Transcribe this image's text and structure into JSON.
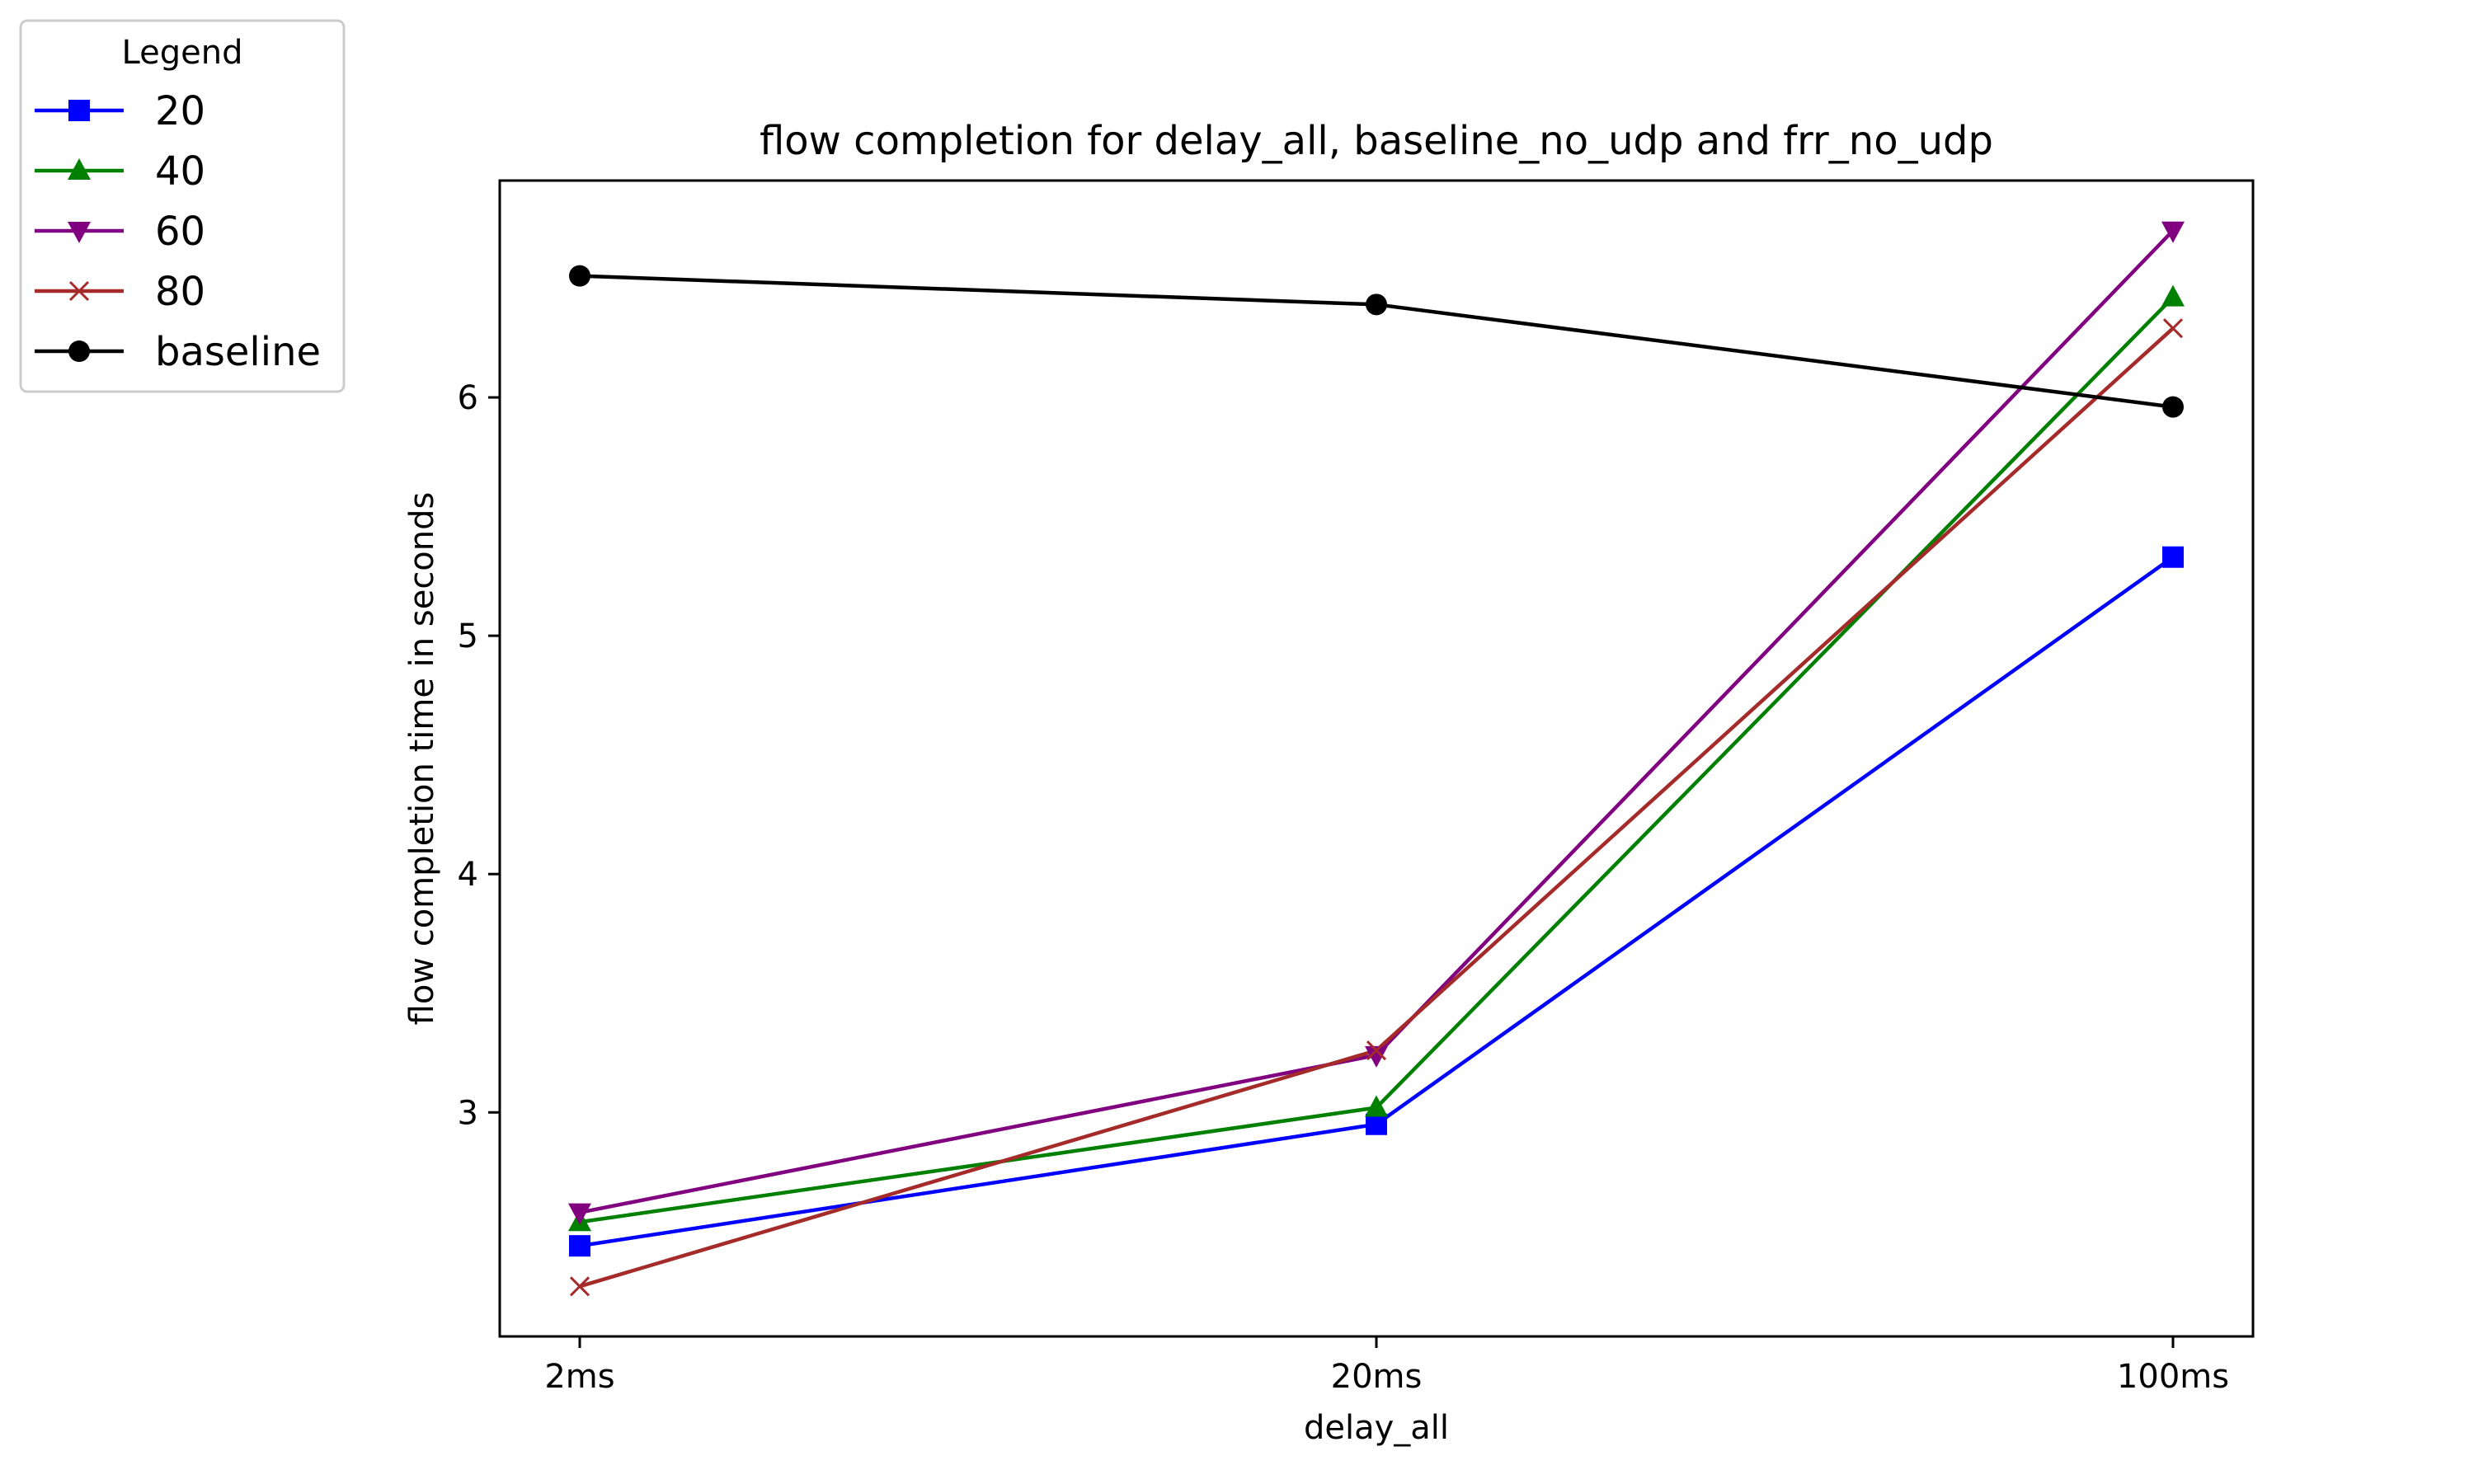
{
  "chart_data": {
    "type": "line",
    "title": "flow completion for delay_all, baseline_no_udp and frr_no_udp",
    "xlabel": "delay_all",
    "ylabel": "flow completion time in seconds",
    "categories": [
      "2ms",
      "20ms",
      "100ms"
    ],
    "ylim": [
      2.06,
      6.91
    ],
    "yticks": [
      3,
      4,
      5,
      6
    ],
    "grid": false,
    "legend": {
      "title": "Legend",
      "placement": "outside-top-left"
    },
    "series": [
      {
        "name": "20",
        "values": [
          2.44,
          2.95,
          5.33
        ],
        "color": "#0000ff",
        "marker": "square"
      },
      {
        "name": "40",
        "values": [
          2.54,
          3.02,
          6.42
        ],
        "color": "#008000",
        "marker": "triangle-up"
      },
      {
        "name": "60",
        "values": [
          2.58,
          3.24,
          6.7
        ],
        "color": "#800080",
        "marker": "triangle-down"
      },
      {
        "name": "80",
        "values": [
          2.27,
          3.26,
          6.29
        ],
        "color": "#a52a2a",
        "marker": "x"
      },
      {
        "name": "baseline",
        "values": [
          6.51,
          6.39,
          5.96
        ],
        "color": "#000000",
        "marker": "circle"
      }
    ]
  }
}
